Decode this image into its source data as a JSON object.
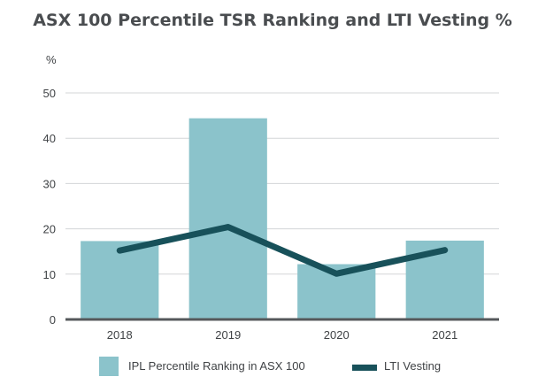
{
  "chart_data": {
    "type": "bar",
    "title": "ASX 100 Percentile TSR Ranking and LTI Vesting %",
    "ylabel": "%",
    "xlabel": "",
    "ylim": [
      0,
      50
    ],
    "yticks": [
      0,
      10,
      20,
      30,
      40,
      50
    ],
    "grid": true,
    "legend_position": "bottom",
    "categories": [
      "2018",
      "2019",
      "2020",
      "2021"
    ],
    "series": [
      {
        "name": "IPL Percentile Ranking in ASX 100",
        "type": "bar",
        "color": "#8bc3cb",
        "values": [
          17.3,
          44.4,
          12.2,
          17.4
        ]
      },
      {
        "name": "LTI Vesting",
        "type": "line",
        "color": "#18515a",
        "values": [
          15.2,
          20.4,
          10.1,
          15.3
        ]
      }
    ]
  }
}
